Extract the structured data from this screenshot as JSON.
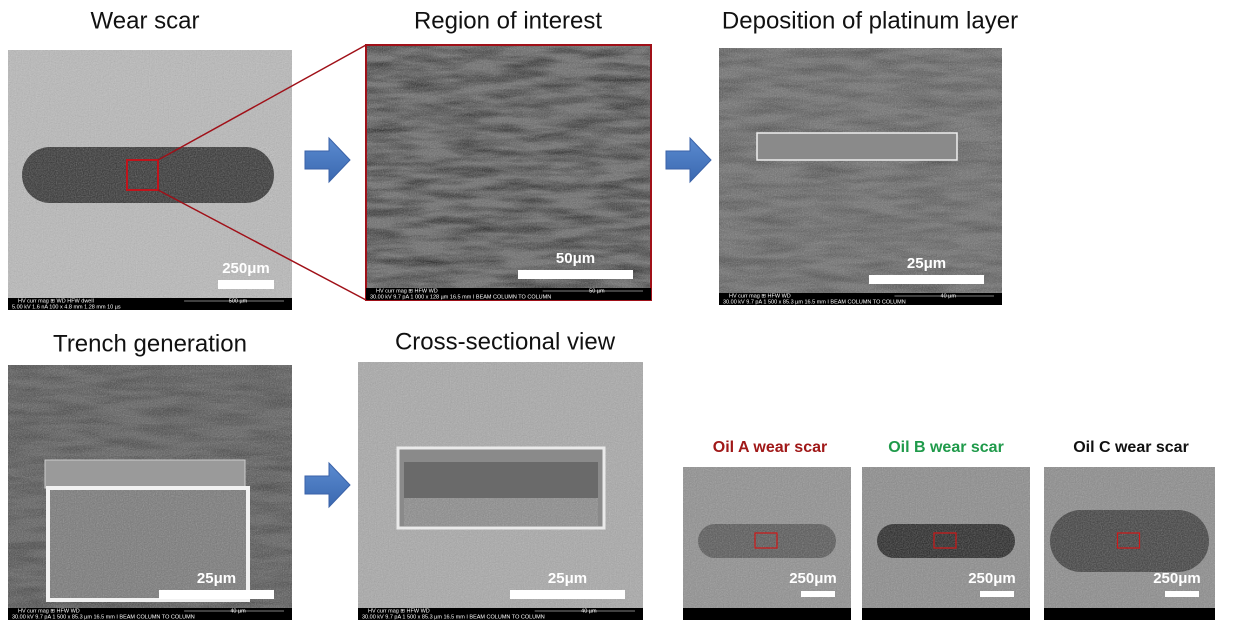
{
  "panels": [
    {
      "title": "Wear scar",
      "scale_bar": "250μm",
      "info": [
        "HV   curr   mag ⊞   WD   HFW   dwell",
        "5.00 kV 1.6 nA  100 x  4.8 mm 1.28 mm 10 µs"
      ],
      "info_scale": "500 µm"
    },
    {
      "title": "Region of interest",
      "scale_bar": "50μm",
      "info": [
        "HV   curr   mag ⊞   HFW   WD",
        "30.00 kV 9.7 pA 1 000 x 128 µm 16.5 mm   I BEAM COLUMN TO COLUMN"
      ],
      "info_scale": "50 µm"
    },
    {
      "title": "Deposition of platinum layer",
      "scale_bar": "25μm",
      "info": [
        "HV   curr   mag ⊞   HFW   WD",
        "30.00 kV 9.7 pA 1 500 x 85.3 µm 16.5 mm   I BEAM COLUMN TO COLUMN"
      ],
      "info_scale": "40 µm"
    },
    {
      "title": "Trench generation",
      "scale_bar": "25μm",
      "info": [
        "HV   curr   mag ⊞   HFW   WD",
        "30.00 kV 9.7 pA 1 500 x 85.3 µm 16.5 mm   I BEAM COLUMN TO COLUMN"
      ],
      "info_scale": "40 µm"
    },
    {
      "title": "Cross-sectional view",
      "scale_bar": "25μm",
      "info": [
        "HV   curr   mag ⊞   HFW   WD",
        "30.00 kV 9.7 pA 1 500 x 85.3 µm 16.5 mm   I BEAM COLUMN TO COLUMN"
      ],
      "info_scale": "40 µm"
    }
  ],
  "oil_panels": [
    {
      "title": "Oil A  wear scar",
      "scale_bar": "250μm"
    },
    {
      "title": "Oil B wear scar",
      "scale_bar": "250μm"
    },
    {
      "title": "Oil C wear scar",
      "scale_bar": "250μm"
    }
  ]
}
